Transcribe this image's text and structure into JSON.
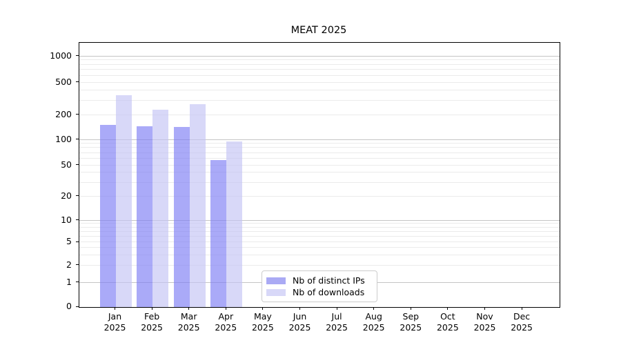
{
  "chart_data": {
    "type": "bar",
    "title": "MEAT 2025",
    "year_label": "2025",
    "months": [
      "Jan",
      "Feb",
      "Mar",
      "Apr",
      "May",
      "Jun",
      "Jul",
      "Aug",
      "Sep",
      "Oct",
      "Nov",
      "Dec"
    ],
    "series": [
      {
        "name": "Nb of distinct IPs",
        "values": [
          150,
          145,
          142,
          58,
          0,
          0,
          0,
          0,
          0,
          0,
          0,
          0
        ],
        "bar_color": "rgba(124,124,244,0.65)",
        "legend_color": "#aaaaf4"
      },
      {
        "name": "Nb of downloads",
        "values": [
          350,
          230,
          270,
          95,
          0,
          0,
          0,
          0,
          0,
          0,
          0,
          0
        ],
        "bar_color": "rgba(195,195,244,0.65)",
        "legend_color": "#d8d8f8"
      }
    ],
    "yticks": [
      0,
      1,
      2,
      5,
      10,
      20,
      50,
      100,
      200,
      500,
      1000
    ],
    "yaxis_scale": "symlog",
    "ylim_top": 1400,
    "grid": "horizontal major and minor, log-spaced",
    "legend_position": "inside bottom-center",
    "colors": {
      "major_grid": "#c4c4c4",
      "minor_grid": "#ebebeb",
      "spine": "#000000"
    }
  }
}
